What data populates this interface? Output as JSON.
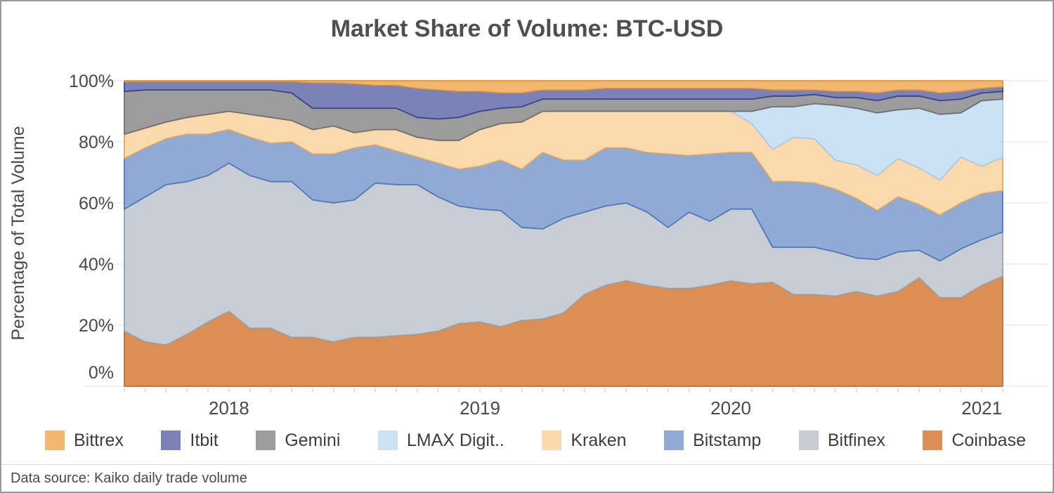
{
  "title": "Market Share of Volume: BTC-USD",
  "source_note": "Data source: Kaiko daily trade volume",
  "colors": {
    "grid": "#ebebeb",
    "tick": "#d6d6d6",
    "text": "#4a4a4a"
  },
  "chart_data": {
    "type": "area",
    "stacked": true,
    "normalized": true,
    "title": "Market Share of Volume: BTC-USD",
    "xlabel": "",
    "ylabel": "Percentage of Total Volume",
    "ylim": [
      0,
      100
    ],
    "grid": "horizontal",
    "legend_position": "bottom",
    "y_ticks": [
      {
        "value": 0,
        "label": "0%"
      },
      {
        "value": 20,
        "label": "20%"
      },
      {
        "value": 40,
        "label": "40%"
      },
      {
        "value": 60,
        "label": "60%"
      },
      {
        "value": 80,
        "label": "80%"
      },
      {
        "value": 100,
        "label": "100%"
      }
    ],
    "x_ticks": [
      {
        "month": "2018-01",
        "label": "2018"
      },
      {
        "month": "2019-01",
        "label": "2019"
      },
      {
        "month": "2020-01",
        "label": "2020"
      },
      {
        "month": "2021-01",
        "label": "2021"
      }
    ],
    "months": [
      "2017-08",
      "2017-09",
      "2017-10",
      "2017-11",
      "2017-12",
      "2018-01",
      "2018-02",
      "2018-03",
      "2018-04",
      "2018-05",
      "2018-06",
      "2018-07",
      "2018-08",
      "2018-09",
      "2018-10",
      "2018-11",
      "2018-12",
      "2019-01",
      "2019-02",
      "2019-03",
      "2019-04",
      "2019-05",
      "2019-06",
      "2019-07",
      "2019-08",
      "2019-09",
      "2019-10",
      "2019-11",
      "2019-12",
      "2020-01",
      "2020-02",
      "2020-03",
      "2020-04",
      "2020-05",
      "2020-06",
      "2020-07",
      "2020-08",
      "2020-09",
      "2020-10",
      "2020-11",
      "2020-12",
      "2021-01",
      "2021-02"
    ],
    "series": [
      {
        "id": "coinbase",
        "label": "Coinbase",
        "color": "#DD8E55",
        "edge": "#BE7038",
        "values": [
          18,
          14.5,
          13.5,
          17,
          21,
          24.5,
          19,
          19,
          16,
          16,
          14.5,
          16,
          16,
          16.5,
          17,
          18,
          20.5,
          21,
          19.5,
          21.5,
          22,
          24,
          30,
          33,
          34.5,
          33,
          32,
          32,
          33,
          34.5,
          33.5,
          34,
          30,
          30,
          29.5,
          31,
          29.5,
          31,
          35.5,
          29,
          29,
          33,
          36
        ]
      },
      {
        "id": "bitfinex",
        "label": "Bitfinex",
        "color": "#C6CDD5",
        "edge": "#97A1AB",
        "values": [
          40,
          47.5,
          52.5,
          50,
          48,
          48.5,
          50,
          48,
          51,
          45,
          45.5,
          45,
          50.5,
          49.5,
          49,
          44,
          38.5,
          37,
          38,
          30.5,
          29.5,
          31,
          27,
          26,
          25.5,
          24,
          20,
          25,
          21,
          23.5,
          24.5,
          11.5,
          15.5,
          15.5,
          14.5,
          11,
          12,
          13,
          9,
          12,
          16,
          15,
          14.5
        ]
      },
      {
        "id": "bitstamp",
        "label": "Bitstamp",
        "color": "#8FAAD4",
        "edge": "#5377BD",
        "values": [
          16.5,
          16,
          15,
          15.5,
          13.5,
          11,
          12.5,
          12.5,
          13,
          15,
          16,
          17,
          12.5,
          11,
          9,
          11,
          12,
          14,
          16.5,
          19,
          25,
          19,
          17,
          19,
          18,
          19.5,
          24,
          18.5,
          22,
          18.5,
          18.5,
          21.5,
          21.5,
          21,
          20.5,
          19.5,
          16,
          18,
          15,
          15,
          15,
          15,
          13.5
        ]
      },
      {
        "id": "kraken",
        "label": "Kraken",
        "color": "#FAD9AE",
        "edge": "#E2A85C",
        "values": [
          8,
          6.5,
          5.5,
          5.5,
          6.5,
          6,
          7.5,
          8.5,
          7,
          8,
          9.2,
          5,
          5,
          7,
          6.5,
          7.5,
          9.5,
          12,
          12,
          15.5,
          13.5,
          16,
          16,
          12,
          12,
          13.5,
          14,
          14.5,
          14,
          13.5,
          9.5,
          10.5,
          14.5,
          14.5,
          9.5,
          11,
          11.5,
          12.5,
          12,
          11.5,
          15,
          9,
          11
        ]
      },
      {
        "id": "lmax-digital",
        "label": "LMAX Digit..",
        "color": "#CBE1F4",
        "edge": "#A9CBE8",
        "values": [
          0,
          0,
          0,
          0,
          0,
          0,
          0,
          0,
          0,
          0,
          0,
          0,
          0,
          0,
          0,
          0,
          0,
          0,
          0,
          0,
          0,
          0,
          0,
          0,
          0,
          0,
          0,
          0,
          0,
          0,
          4,
          14,
          10,
          11.5,
          18,
          18.5,
          20.5,
          16,
          19.5,
          21.5,
          14.5,
          21.5,
          19
        ]
      },
      {
        "id": "gemini",
        "label": "Gemini",
        "color": "#9C9C9C",
        "edge": "#6F6F6F",
        "values": [
          14,
          12.5,
          10.5,
          9,
          8,
          7,
          8,
          9,
          9,
          7,
          5.8,
          8,
          7,
          7,
          6.5,
          7,
          7.5,
          6,
          5,
          5,
          4,
          4,
          4,
          4,
          4,
          4,
          4,
          4,
          4,
          4,
          4,
          3.5,
          3.5,
          3,
          2.5,
          3.5,
          4,
          4.5,
          4,
          4.5,
          4.5,
          2.5,
          2.5
        ]
      },
      {
        "id": "itbit",
        "label": "Itbit",
        "color": "#7B82B5",
        "edge": "#3B4396",
        "values": [
          3.2,
          2.7,
          2.7,
          2.7,
          2.7,
          2.7,
          2.7,
          2.7,
          3.7,
          8.3,
          8.3,
          8,
          7.5,
          7.5,
          9.5,
          9.5,
          8.5,
          6.5,
          5,
          4.5,
          3,
          3,
          3,
          3.5,
          3.5,
          3.5,
          3.5,
          3.5,
          3.5,
          3.5,
          3.5,
          2,
          2,
          1.5,
          2,
          2,
          2.5,
          2,
          2,
          2.5,
          2.5,
          1.5,
          1.5
        ]
      },
      {
        "id": "bittrex",
        "label": "Bittrex",
        "color": "#F2B871",
        "edge": "#E6912F",
        "values": [
          0.3,
          0.3,
          0.3,
          0.3,
          0.3,
          0.3,
          0.3,
          0.3,
          0.3,
          0.7,
          0.7,
          1,
          1.5,
          1.5,
          2.5,
          3,
          3.5,
          3.5,
          4,
          4,
          3,
          3,
          3,
          2.5,
          2.5,
          2.5,
          2.5,
          2.5,
          2.5,
          2.5,
          2.5,
          3,
          3,
          3,
          3.5,
          3.5,
          4,
          3,
          3,
          4,
          3.5,
          2.5,
          2
        ]
      }
    ]
  }
}
